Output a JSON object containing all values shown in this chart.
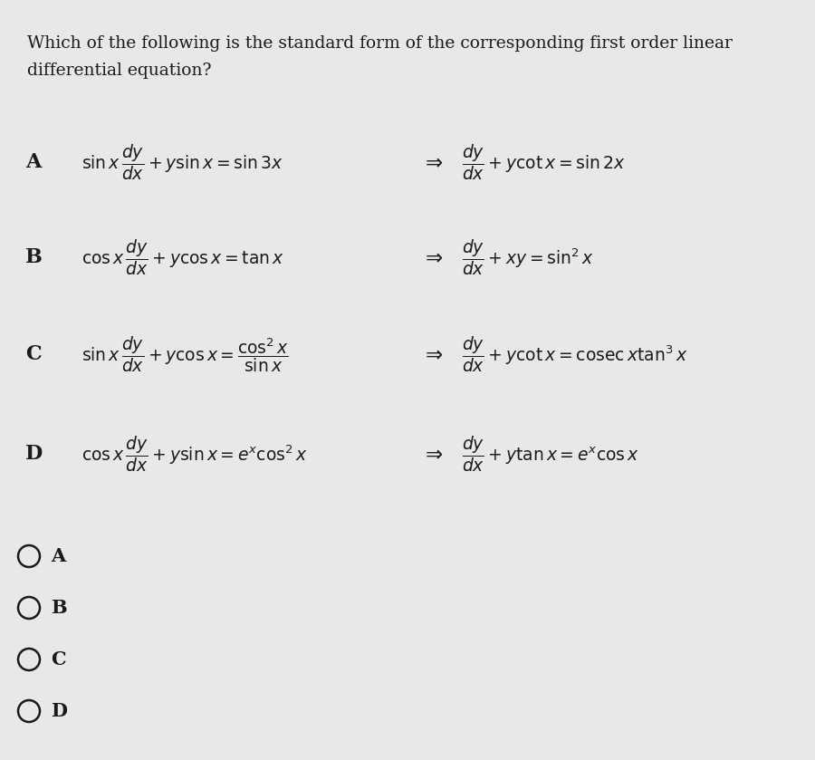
{
  "title_line1": "Which of the following is the standard form of the corresponding first order linear",
  "title_line2": "differential equation?",
  "bg_color": "#e8e8eb",
  "text_color": "#1a1a1a",
  "option_A_left": "$\\sin x\\,\\dfrac{dy}{dx}+y\\sin x=\\sin 3x$",
  "option_A_right": "$\\dfrac{dy}{dx}+y\\cot x=\\sin 2x$",
  "option_B_left": "$\\cos x\\,\\dfrac{dy}{dx}+y\\cos x=\\tan x$",
  "option_B_right": "$\\dfrac{dy}{dx}+xy=\\sin^{2}x$",
  "option_C_left": "$\\sin x\\,\\dfrac{dy}{dx}+y\\cos x=\\dfrac{\\cos^{2}x}{\\sin x}$",
  "option_C_right": "$\\dfrac{dy}{dx}+y\\cot x=\\mathrm{cosec}\\,x\\tan^{3}x$",
  "option_D_left": "$\\cos x\\,\\dfrac{dy}{dx}+y\\sin x=e^{x}\\cos^{2}x$",
  "option_D_right": "$\\dfrac{dy}{dx}+y\\tan x=e^{x}\\cos x$",
  "choice_labels": [
    "A",
    "B",
    "C",
    "D"
  ],
  "font_size_title": 13.5,
  "font_size_option": 13.5,
  "font_size_label": 15
}
